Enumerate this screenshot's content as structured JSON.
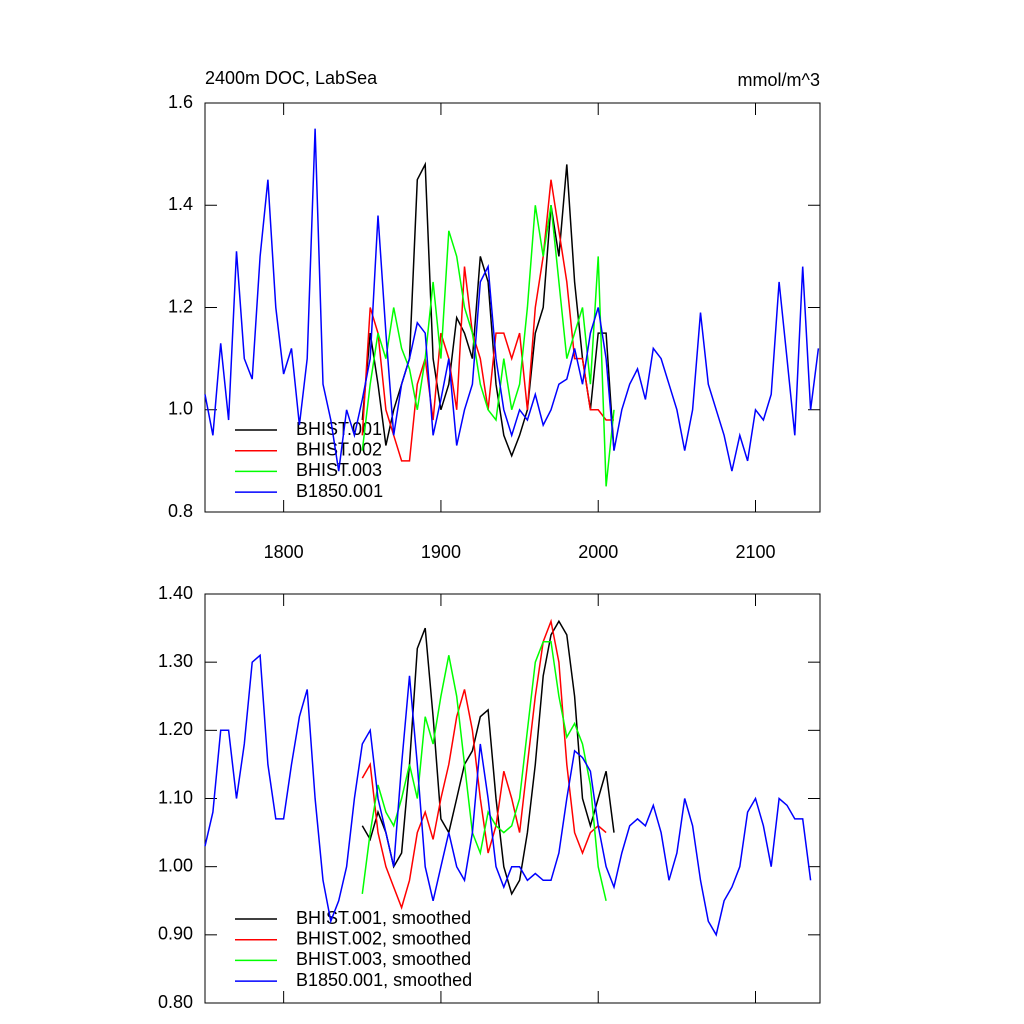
{
  "chart_data": [
    {
      "type": "line",
      "title": "2400m DOC, LabSea",
      "subtitle": "mmol/m^3",
      "xlim": [
        1750,
        2141
      ],
      "xticks": [
        1800,
        1900,
        2000,
        2100
      ],
      "ylim": [
        0.8,
        1.6
      ],
      "yticks": [
        {
          "value": 0.8,
          "label": "0.8"
        },
        {
          "value": 1,
          "label": "1.0"
        },
        {
          "value": 1.2,
          "label": "1.2"
        },
        {
          "value": 1.4,
          "label": "1.4"
        },
        {
          "value": 1.6,
          "label": "1.6"
        }
      ],
      "legend": "lower left",
      "series": [
        {
          "name": "BHIST.001",
          "color": "#000000",
          "x": [
            1850,
            1855,
            1860,
            1865,
            1870,
            1875,
            1880,
            1885,
            1890,
            1895,
            1900,
            1905,
            1910,
            1915,
            1920,
            1925,
            1930,
            1935,
            1940,
            1945,
            1950,
            1955,
            1960,
            1965,
            1970,
            1975,
            1980,
            1985,
            1990,
            1995,
            2000,
            2005,
            2010
          ],
          "values": [
            0.98,
            1.15,
            1.05,
            0.93,
            1.0,
            1.05,
            1.1,
            1.45,
            1.48,
            1.1,
            1.0,
            1.05,
            1.18,
            1.15,
            1.1,
            1.3,
            1.25,
            1.05,
            0.95,
            0.91,
            0.95,
            1.0,
            1.15,
            1.2,
            1.4,
            1.3,
            1.48,
            1.25,
            1.1,
            1.0,
            1.15,
            1.15,
            0.92
          ]
        },
        {
          "name": "BHIST.002",
          "color": "#ff0000",
          "x": [
            1850,
            1855,
            1860,
            1865,
            1870,
            1875,
            1880,
            1885,
            1890,
            1895,
            1900,
            1905,
            1910,
            1915,
            1920,
            1925,
            1930,
            1935,
            1940,
            1945,
            1950,
            1955,
            1960,
            1965,
            1970,
            1975,
            1980,
            1985,
            1990,
            1995,
            2000,
            2005,
            2010
          ],
          "values": [
            0.95,
            1.2,
            1.15,
            1.0,
            0.95,
            0.9,
            0.9,
            1.05,
            1.1,
            0.98,
            1.15,
            1.1,
            1.0,
            1.28,
            1.15,
            1.1,
            1.0,
            1.15,
            1.15,
            1.1,
            1.15,
            1.0,
            1.2,
            1.3,
            1.45,
            1.35,
            1.25,
            1.1,
            1.1,
            1.0,
            1.0,
            0.98,
            0.98
          ]
        },
        {
          "name": "BHIST.003",
          "color": "#00ff00",
          "x": [
            1850,
            1855,
            1860,
            1865,
            1870,
            1875,
            1880,
            1885,
            1890,
            1895,
            1900,
            1905,
            1910,
            1915,
            1920,
            1925,
            1930,
            1935,
            1940,
            1945,
            1950,
            1955,
            1960,
            1965,
            1970,
            1975,
            1980,
            1985,
            1990,
            1995,
            2000,
            2005,
            2010
          ],
          "values": [
            0.92,
            1.05,
            1.15,
            1.1,
            1.2,
            1.12,
            1.08,
            1.0,
            1.1,
            1.25,
            1.1,
            1.35,
            1.3,
            1.2,
            1.15,
            1.05,
            1.0,
            0.98,
            1.1,
            1.0,
            1.05,
            1.2,
            1.4,
            1.3,
            1.4,
            1.25,
            1.1,
            1.15,
            1.2,
            1.05,
            1.3,
            0.85,
            1.0
          ]
        },
        {
          "name": "B1850.001",
          "color": "#0000ff",
          "x": [
            1750,
            1755,
            1760,
            1765,
            1770,
            1775,
            1780,
            1785,
            1790,
            1795,
            1800,
            1805,
            1810,
            1815,
            1820,
            1825,
            1830,
            1835,
            1840,
            1845,
            1850,
            1855,
            1860,
            1865,
            1870,
            1875,
            1880,
            1885,
            1890,
            1895,
            1900,
            1905,
            1910,
            1915,
            1920,
            1925,
            1930,
            1935,
            1940,
            1945,
            1950,
            1955,
            1960,
            1965,
            1970,
            1975,
            1980,
            1985,
            1990,
            1995,
            2000,
            2005,
            2010,
            2015,
            2020,
            2025,
            2030,
            2035,
            2040,
            2045,
            2050,
            2055,
            2060,
            2065,
            2070,
            2075,
            2080,
            2085,
            2090,
            2095,
            2100,
            2105,
            2110,
            2115,
            2120,
            2125,
            2130,
            2135,
            2140
          ],
          "values": [
            1.03,
            0.95,
            1.13,
            0.98,
            1.31,
            1.1,
            1.06,
            1.3,
            1.45,
            1.2,
            1.07,
            1.12,
            0.97,
            1.1,
            1.55,
            1.05,
            0.98,
            0.88,
            1.0,
            0.95,
            1.02,
            1.1,
            1.38,
            1.15,
            0.95,
            1.05,
            1.1,
            1.17,
            1.15,
            0.95,
            1.02,
            1.1,
            0.93,
            1.0,
            1.05,
            1.25,
            1.28,
            1.1,
            1.0,
            0.95,
            1.0,
            0.98,
            1.03,
            0.97,
            1.0,
            1.05,
            1.06,
            1.12,
            1.05,
            1.15,
            1.2,
            1.1,
            0.92,
            1.0,
            1.05,
            1.08,
            1.02,
            1.12,
            1.1,
            1.05,
            1.0,
            0.92,
            1.0,
            1.19,
            1.05,
            1.0,
            0.95,
            0.88,
            0.95,
            0.9,
            1.0,
            0.98,
            1.03,
            1.25,
            1.1,
            0.95,
            1.28,
            1.0,
            1.12
          ]
        }
      ]
    },
    {
      "type": "line",
      "xlim": [
        1750,
        2141
      ],
      "xticks": [
        1800,
        1900,
        2000,
        2100
      ],
      "ylim": [
        0.8,
        1.4
      ],
      "yticks": [
        {
          "value": 0.8,
          "label": "0.80"
        },
        {
          "value": 0.9,
          "label": "0.90"
        },
        {
          "value": 1,
          "label": "1.00"
        },
        {
          "value": 1.1,
          "label": "1.10"
        },
        {
          "value": 1.2,
          "label": "1.20"
        },
        {
          "value": 1.3,
          "label": "1.30"
        },
        {
          "value": 1.4,
          "label": "1.40"
        }
      ],
      "legend": "lower left",
      "series": [
        {
          "name": "BHIST.001, smoothed",
          "color": "#000000",
          "x": [
            1850,
            1855,
            1860,
            1865,
            1870,
            1875,
            1880,
            1885,
            1890,
            1895,
            1900,
            1905,
            1910,
            1915,
            1920,
            1925,
            1930,
            1935,
            1940,
            1945,
            1950,
            1955,
            1960,
            1965,
            1970,
            1975,
            1980,
            1985,
            1990,
            1995,
            2000,
            2005,
            2010
          ],
          "values": [
            1.06,
            1.04,
            1.08,
            1.05,
            1.0,
            1.02,
            1.15,
            1.32,
            1.35,
            1.22,
            1.07,
            1.05,
            1.1,
            1.15,
            1.17,
            1.22,
            1.23,
            1.1,
            1.0,
            0.96,
            0.98,
            1.05,
            1.15,
            1.28,
            1.34,
            1.36,
            1.34,
            1.25,
            1.1,
            1.06,
            1.1,
            1.14,
            1.05
          ]
        },
        {
          "name": "BHIST.002, smoothed",
          "color": "#ff0000",
          "x": [
            1850,
            1855,
            1860,
            1865,
            1870,
            1875,
            1880,
            1885,
            1890,
            1895,
            1900,
            1905,
            1910,
            1915,
            1920,
            1925,
            1930,
            1935,
            1940,
            1945,
            1950,
            1955,
            1960,
            1965,
            1970,
            1975,
            1980,
            1985,
            1990,
            1995,
            2000,
            2005
          ],
          "values": [
            1.13,
            1.15,
            1.05,
            1.0,
            0.97,
            0.94,
            0.98,
            1.05,
            1.08,
            1.04,
            1.1,
            1.15,
            1.22,
            1.26,
            1.2,
            1.1,
            1.02,
            1.06,
            1.14,
            1.1,
            1.05,
            1.15,
            1.25,
            1.33,
            1.36,
            1.3,
            1.15,
            1.05,
            1.02,
            1.05,
            1.06,
            1.05
          ]
        },
        {
          "name": "BHIST.003, smoothed",
          "color": "#00ff00",
          "x": [
            1850,
            1855,
            1860,
            1865,
            1870,
            1875,
            1880,
            1885,
            1890,
            1895,
            1900,
            1905,
            1910,
            1915,
            1920,
            1925,
            1930,
            1935,
            1940,
            1945,
            1950,
            1955,
            1960,
            1965,
            1970,
            1975,
            1980,
            1985,
            1990,
            1995,
            2000,
            2005
          ],
          "values": [
            0.96,
            1.05,
            1.12,
            1.08,
            1.06,
            1.1,
            1.15,
            1.1,
            1.22,
            1.18,
            1.25,
            1.31,
            1.25,
            1.15,
            1.05,
            1.02,
            1.08,
            1.06,
            1.05,
            1.06,
            1.1,
            1.2,
            1.3,
            1.33,
            1.33,
            1.25,
            1.19,
            1.21,
            1.18,
            1.12,
            1.0,
            0.95
          ]
        },
        {
          "name": "B1850.001, smoothed",
          "color": "#0000ff",
          "x": [
            1750,
            1755,
            1760,
            1765,
            1770,
            1775,
            1780,
            1785,
            1790,
            1795,
            1800,
            1805,
            1810,
            1815,
            1820,
            1825,
            1830,
            1835,
            1840,
            1845,
            1850,
            1855,
            1860,
            1865,
            1870,
            1875,
            1880,
            1885,
            1890,
            1895,
            1900,
            1905,
            1910,
            1915,
            1920,
            1925,
            1930,
            1935,
            1940,
            1945,
            1950,
            1955,
            1960,
            1965,
            1970,
            1975,
            1980,
            1985,
            1990,
            1995,
            2000,
            2005,
            2010,
            2015,
            2020,
            2025,
            2030,
            2035,
            2040,
            2045,
            2050,
            2055,
            2060,
            2065,
            2070,
            2075,
            2080,
            2085,
            2090,
            2095,
            2100,
            2105,
            2110,
            2115,
            2120,
            2125,
            2130,
            2135
          ],
          "values": [
            1.03,
            1.08,
            1.2,
            1.2,
            1.1,
            1.18,
            1.3,
            1.31,
            1.15,
            1.07,
            1.07,
            1.15,
            1.22,
            1.26,
            1.1,
            0.98,
            0.92,
            0.95,
            1.0,
            1.1,
            1.18,
            1.2,
            1.1,
            1.05,
            1.0,
            1.15,
            1.28,
            1.15,
            1.0,
            0.95,
            1.0,
            1.05,
            1.0,
            0.98,
            1.05,
            1.18,
            1.1,
            1.0,
            0.97,
            1.0,
            1.0,
            0.98,
            0.99,
            0.98,
            0.98,
            1.02,
            1.1,
            1.17,
            1.16,
            1.14,
            1.06,
            1.0,
            0.97,
            1.02,
            1.06,
            1.07,
            1.06,
            1.09,
            1.05,
            0.98,
            1.02,
            1.1,
            1.06,
            0.98,
            0.92,
            0.9,
            0.95,
            0.97,
            1.0,
            1.08,
            1.1,
            1.06,
            1.0,
            1.1,
            1.09,
            1.07,
            1.07,
            0.98
          ]
        }
      ]
    }
  ]
}
